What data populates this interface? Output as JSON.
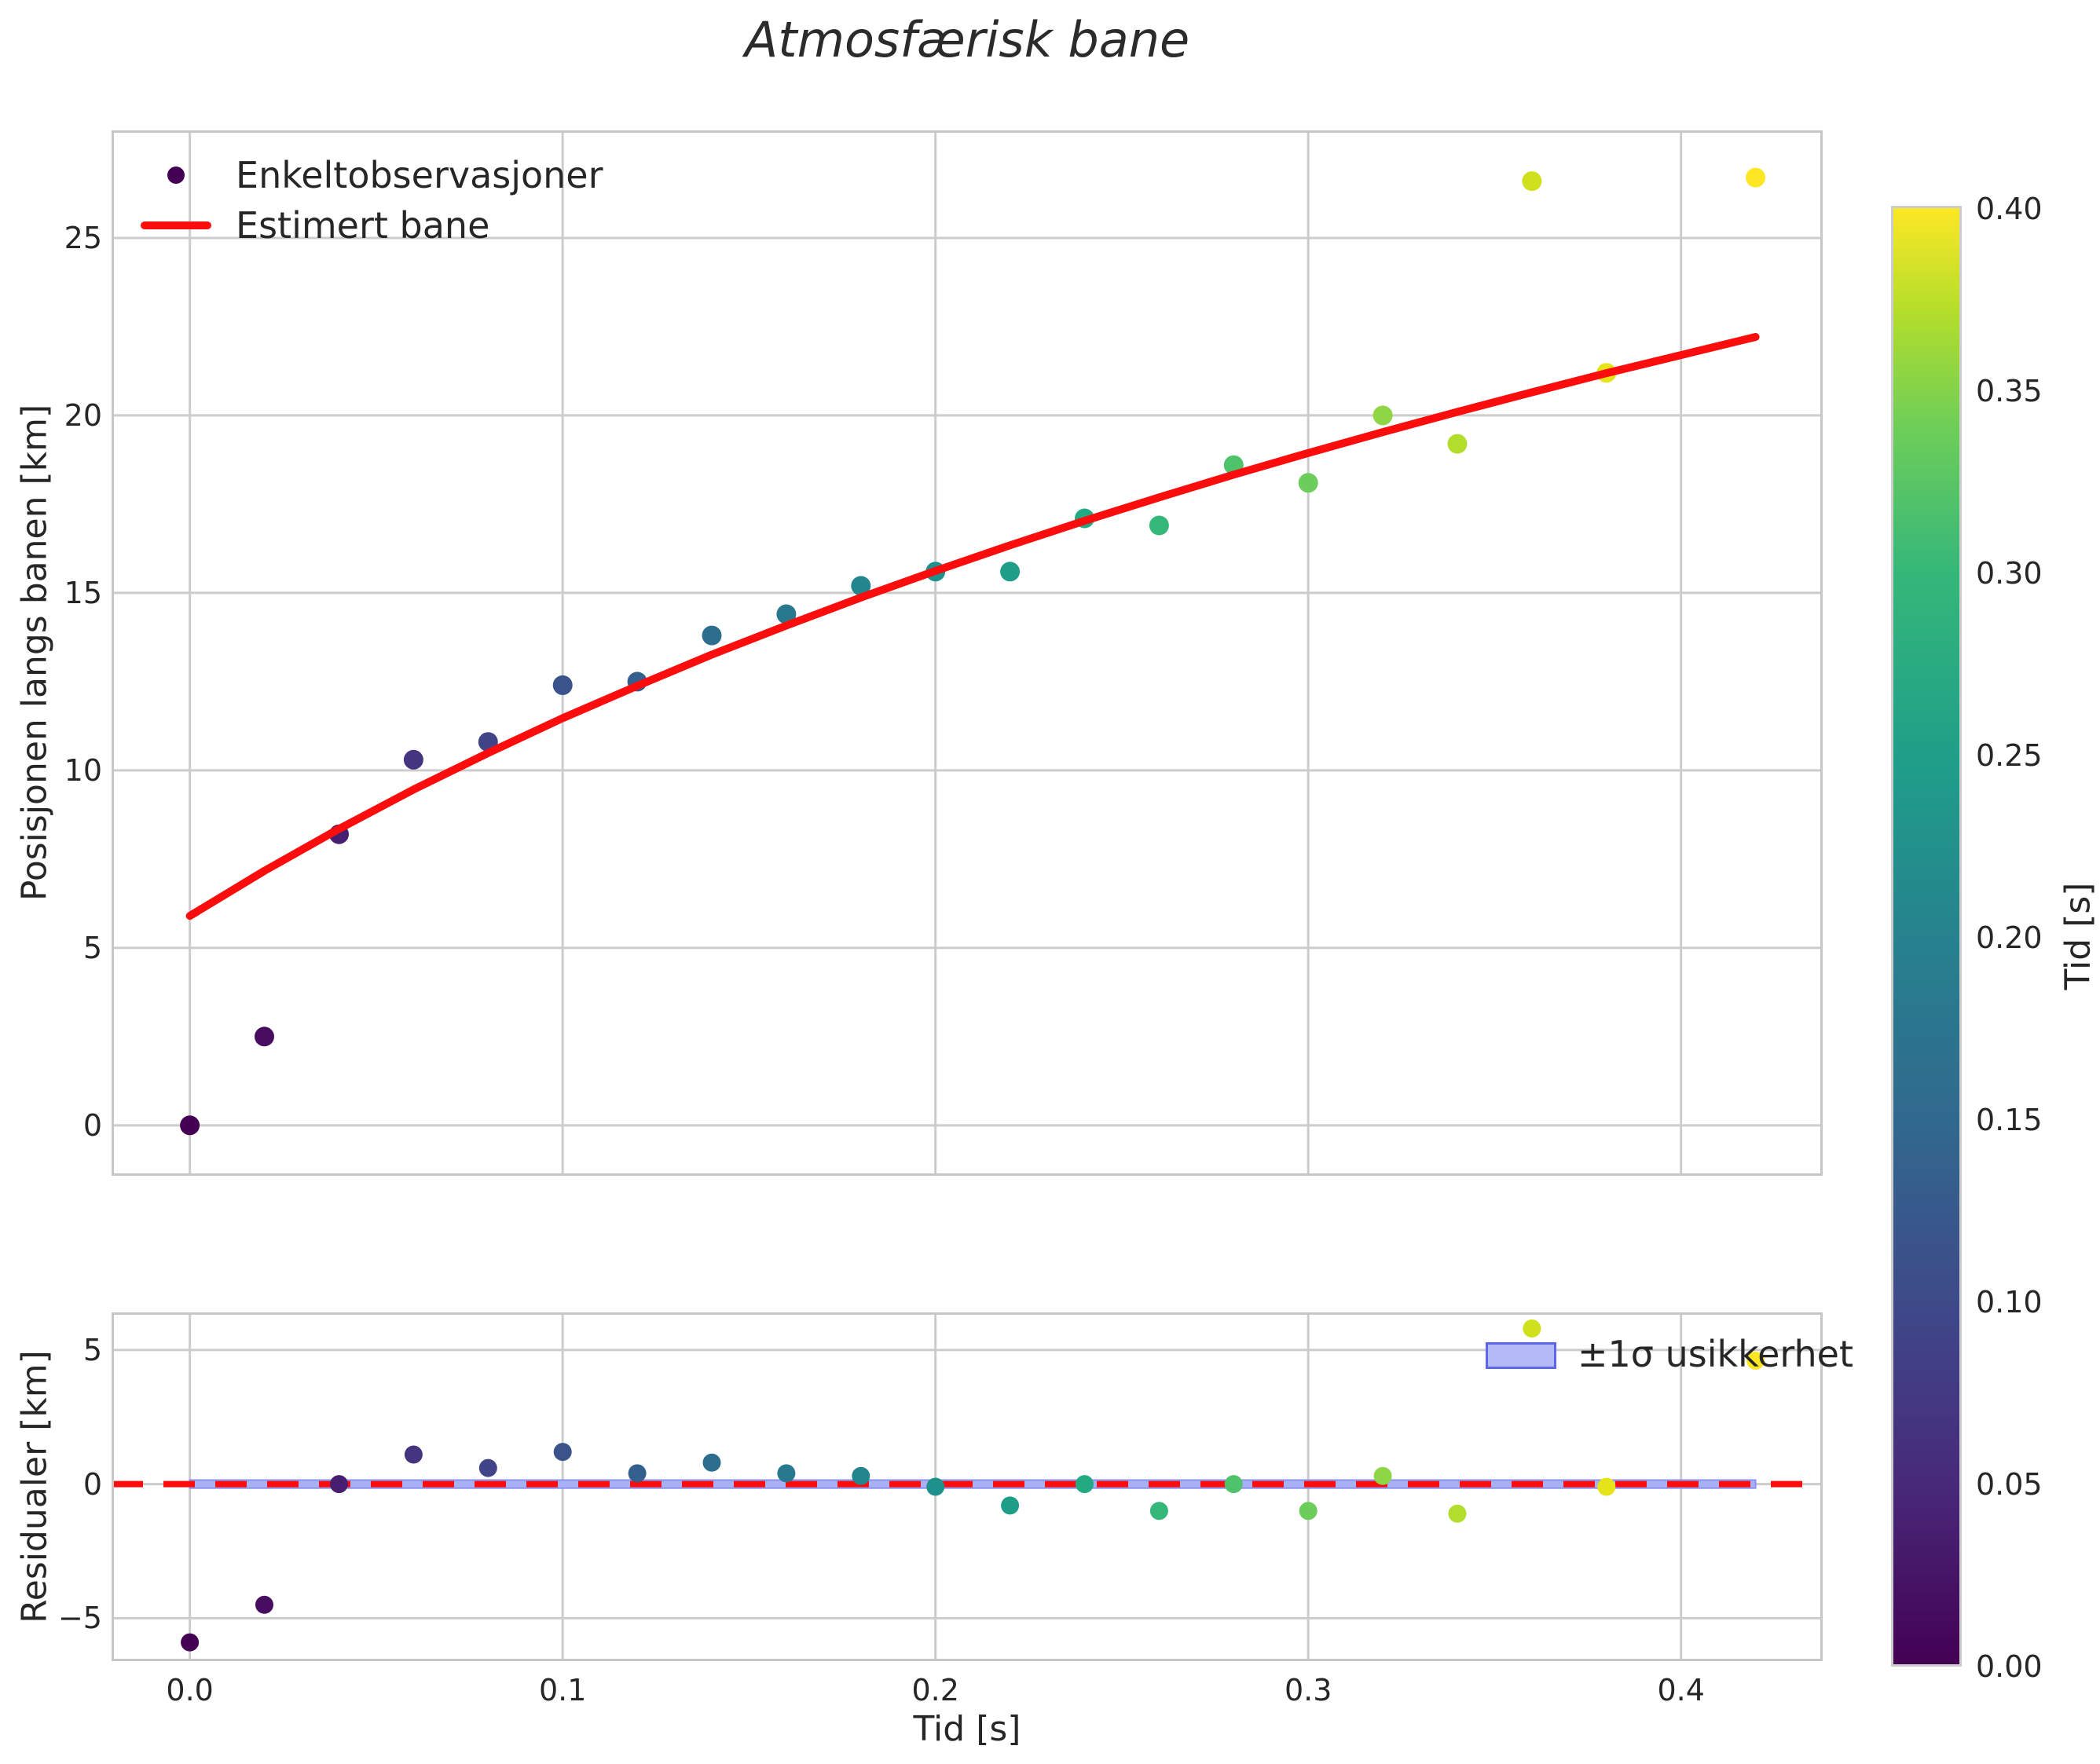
{
  "figure": {
    "title": "Atmosfærisk bane",
    "background": "#ffffff"
  },
  "main_plot": {
    "ylabel": "Posisjonen langs banen [km]",
    "yticklabels": [
      "0",
      "5",
      "10",
      "15",
      "20",
      "25"
    ],
    "legend": {
      "scatter_label": "Enkeltobservasjoner",
      "line_label": "Estimert bane"
    }
  },
  "residual_plot": {
    "ylabel": "Residualer [km]",
    "xlabel": "Tid [s]",
    "yticklabels": [
      "−5",
      "0",
      "5"
    ],
    "xticklabels": [
      "0.0",
      "0.1",
      "0.2",
      "0.3",
      "0.4"
    ],
    "band_label": "±1σ usikkerhet"
  },
  "colorbar": {
    "label": "Tid [s]",
    "ticklabels": [
      "0.40",
      "0.35",
      "0.30",
      "0.25",
      "0.20",
      "0.15",
      "0.10",
      "0.05",
      "0.00"
    ],
    "vmin": 0.0,
    "vmax": 0.4,
    "colormap": "viridis"
  },
  "colors": {
    "curve": "#fb0d0d",
    "zero_line": "#fb0d0d",
    "band_fill": "#a9b0f4",
    "band_edge": "#8a93ef",
    "legend_patch_fill": "#b4baf6",
    "legend_patch_edge": "#5b65ee",
    "grid": "#cccccc",
    "spine": "#c6c6c6",
    "text": "#262626",
    "first_point": "#440154"
  },
  "chart_data": [
    {
      "type": "scatter",
      "title": "Atmosfærisk bane",
      "xlabel": "",
      "ylabel": "Posisjonen langs banen [km]",
      "xlim": [
        -0.021,
        0.438
      ],
      "ylim": [
        -1.42,
        28.03
      ],
      "xticks": [
        0.0,
        0.1,
        0.2,
        0.3,
        0.4
      ],
      "yticks": [
        0,
        5,
        10,
        15,
        20,
        25
      ],
      "grid": true,
      "legend_position": "upper-left",
      "series": [
        {
          "name": "Enkeltobservasjoner",
          "type": "scatter",
          "x": [
            0.0,
            0.02,
            0.04,
            0.06,
            0.08,
            0.1,
            0.12,
            0.14,
            0.16,
            0.18,
            0.2,
            0.22,
            0.24,
            0.26,
            0.28,
            0.3,
            0.32,
            0.34,
            0.36,
            0.38,
            0.42
          ],
          "y": [
            0.0,
            2.5,
            8.2,
            10.3,
            10.8,
            12.4,
            12.5,
            13.8,
            14.4,
            15.2,
            15.6,
            15.6,
            17.1,
            16.9,
            18.6,
            18.1,
            20.0,
            19.2,
            26.6,
            21.2,
            26.7
          ],
          "colors": [
            "#440154",
            "#470d60",
            "#481f70",
            "#453581",
            "#404588",
            "#3a538b",
            "#33608d",
            "#2d6d8e",
            "#28798e",
            "#23858d",
            "#1f918c",
            "#1e9d89",
            "#24aa83",
            "#35b779",
            "#4ec36b",
            "#6ccd5a",
            "#8ed645",
            "#b2dd2d",
            "#cfe11c",
            "#e5e419",
            "#fde725"
          ]
        },
        {
          "name": "Estimert bane",
          "type": "line",
          "color": "#fb0d0d",
          "x": [
            0.0,
            0.02,
            0.04,
            0.06,
            0.08,
            0.1,
            0.12,
            0.14,
            0.16,
            0.18,
            0.2,
            0.22,
            0.24,
            0.26,
            0.28,
            0.3,
            0.32,
            0.34,
            0.36,
            0.38,
            0.4,
            0.42
          ],
          "y": [
            5.9,
            7.17,
            8.35,
            9.46,
            10.49,
            11.47,
            12.38,
            13.26,
            14.08,
            14.87,
            15.62,
            16.34,
            17.03,
            17.69,
            18.33,
            18.94,
            19.53,
            20.1,
            20.65,
            21.19,
            21.7,
            22.21
          ]
        }
      ]
    },
    {
      "type": "scatter",
      "title": "",
      "xlabel": "Tid [s]",
      "ylabel": "Residualer [km]",
      "xlim": [
        -0.021,
        0.438
      ],
      "ylim": [
        -6.6,
        6.4
      ],
      "xticks": [
        0.0,
        0.1,
        0.2,
        0.3,
        0.4
      ],
      "yticks": [
        -5,
        0,
        5
      ],
      "grid": true,
      "zero_line": {
        "color": "#fb0d0d",
        "style": "dashed"
      },
      "band": {
        "label": "±1σ usikkerhet",
        "x": [
          0.0,
          0.42
        ],
        "y": [
          -0.15,
          0.15
        ],
        "fill": "#a9b0f4"
      },
      "series": [
        {
          "name": "Residualer",
          "type": "scatter",
          "x": [
            0.0,
            0.02,
            0.04,
            0.06,
            0.08,
            0.1,
            0.12,
            0.14,
            0.16,
            0.18,
            0.2,
            0.22,
            0.24,
            0.26,
            0.28,
            0.3,
            0.32,
            0.34,
            0.36,
            0.38,
            0.42
          ],
          "y": [
            -5.9,
            -4.5,
            0.0,
            1.1,
            0.6,
            1.2,
            0.4,
            0.8,
            0.4,
            0.3,
            -0.1,
            -0.8,
            0.0,
            -1.0,
            0.0,
            -1.0,
            0.3,
            -1.1,
            5.8,
            -0.1,
            4.6
          ],
          "colors": [
            "#440154",
            "#470d60",
            "#481f70",
            "#453581",
            "#404588",
            "#3a538b",
            "#33608d",
            "#2d6d8e",
            "#28798e",
            "#23858d",
            "#1f918c",
            "#1e9d89",
            "#24aa83",
            "#35b779",
            "#4ec36b",
            "#6ccd5a",
            "#8ed645",
            "#b2dd2d",
            "#cfe11c",
            "#e5e419",
            "#fde725"
          ]
        }
      ]
    }
  ]
}
